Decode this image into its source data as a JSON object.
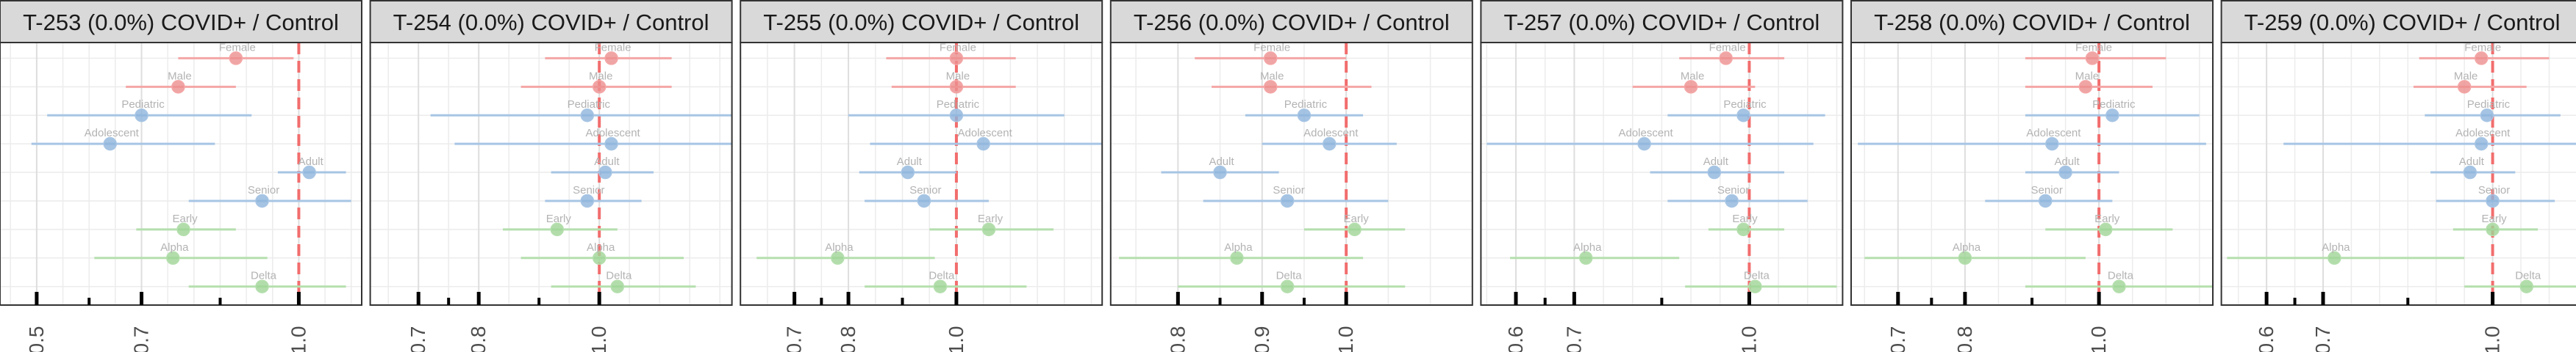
{
  "chart_data": [
    {
      "type": "forest",
      "title": "T-253 (0.0%) COVID+ / Control",
      "xticks": [
        0.5,
        0.7,
        1.0
      ],
      "xlim": [
        0.43,
        1.12
      ],
      "reference_line": 1.0,
      "points": [
        {
          "label": "Female",
          "estimate": 0.88,
          "low": 0.77,
          "high": 0.99
        },
        {
          "label": "Male",
          "estimate": 0.77,
          "low": 0.67,
          "high": 0.88
        },
        {
          "label": "Pediatric",
          "estimate": 0.7,
          "low": 0.52,
          "high": 0.91
        },
        {
          "label": "Adolescent",
          "estimate": 0.64,
          "low": 0.49,
          "high": 0.84
        },
        {
          "label": "Adult",
          "estimate": 1.02,
          "low": 0.96,
          "high": 1.09
        },
        {
          "label": "Senior",
          "estimate": 0.93,
          "low": 0.79,
          "high": 1.1
        },
        {
          "label": "Early",
          "estimate": 0.78,
          "low": 0.69,
          "high": 0.88
        },
        {
          "label": "Alpha",
          "estimate": 0.76,
          "low": 0.61,
          "high": 0.94
        },
        {
          "label": "Delta",
          "estimate": 0.93,
          "low": 0.79,
          "high": 1.09
        }
      ]
    },
    {
      "type": "forest",
      "title": "T-254 (0.0%) COVID+ / Control",
      "xticks": [
        0.7,
        0.8,
        1.0
      ],
      "xlim": [
        0.62,
        1.22
      ],
      "reference_line": 1.0,
      "points": [
        {
          "label": "Female",
          "estimate": 1.02,
          "low": 0.91,
          "high": 1.12
        },
        {
          "label": "Male",
          "estimate": 1.0,
          "low": 0.87,
          "high": 1.12
        },
        {
          "label": "Pediatric",
          "estimate": 0.98,
          "low": 0.72,
          "high": 1.22
        },
        {
          "label": "Adolescent",
          "estimate": 1.02,
          "low": 0.76,
          "high": 1.22
        },
        {
          "label": "Adult",
          "estimate": 1.01,
          "low": 0.92,
          "high": 1.09
        },
        {
          "label": "Senior",
          "estimate": 0.98,
          "low": 0.91,
          "high": 1.07
        },
        {
          "label": "Early",
          "estimate": 0.93,
          "low": 0.84,
          "high": 1.03
        },
        {
          "label": "Alpha",
          "estimate": 1.0,
          "low": 0.87,
          "high": 1.14
        },
        {
          "label": "Delta",
          "estimate": 1.03,
          "low": 0.92,
          "high": 1.16
        }
      ]
    },
    {
      "type": "forest",
      "title": "T-255 (0.0%) COVID+ / Control",
      "xticks": [
        0.7,
        0.8,
        1.0
      ],
      "xlim": [
        0.6,
        1.27
      ],
      "reference_line": 1.0,
      "points": [
        {
          "label": "Female",
          "estimate": 1.0,
          "low": 0.87,
          "high": 1.11
        },
        {
          "label": "Male",
          "estimate": 1.0,
          "low": 0.88,
          "high": 1.11
        },
        {
          "label": "Pediatric",
          "estimate": 1.0,
          "low": 0.8,
          "high": 1.2
        },
        {
          "label": "Adolescent",
          "estimate": 1.05,
          "low": 0.84,
          "high": 1.27
        },
        {
          "label": "Adult",
          "estimate": 0.91,
          "low": 0.82,
          "high": 1.0
        },
        {
          "label": "Senior",
          "estimate": 0.94,
          "low": 0.83,
          "high": 1.06
        },
        {
          "label": "Early",
          "estimate": 1.06,
          "low": 0.95,
          "high": 1.18
        },
        {
          "label": "Alpha",
          "estimate": 0.78,
          "low": 0.63,
          "high": 0.96
        },
        {
          "label": "Delta",
          "estimate": 0.97,
          "low": 0.83,
          "high": 1.13
        }
      ]
    },
    {
      "type": "forest",
      "title": "T-256 (0.0%) COVID+ / Control",
      "xticks": [
        0.8,
        0.9,
        1.0
      ],
      "xlim": [
        0.72,
        1.15
      ],
      "reference_line": 1.0,
      "points": [
        {
          "label": "Female",
          "estimate": 0.91,
          "low": 0.82,
          "high": 1.0
        },
        {
          "label": "Male",
          "estimate": 0.91,
          "low": 0.84,
          "high": 1.03
        },
        {
          "label": "Pediatric",
          "estimate": 0.95,
          "low": 0.88,
          "high": 1.02
        },
        {
          "label": "Adolescent",
          "estimate": 0.98,
          "low": 0.9,
          "high": 1.06
        },
        {
          "label": "Adult",
          "estimate": 0.85,
          "low": 0.78,
          "high": 0.92
        },
        {
          "label": "Senior",
          "estimate": 0.93,
          "low": 0.83,
          "high": 1.05
        },
        {
          "label": "Early",
          "estimate": 1.01,
          "low": 0.95,
          "high": 1.07
        },
        {
          "label": "Alpha",
          "estimate": 0.87,
          "low": 0.73,
          "high": 1.02
        },
        {
          "label": "Delta",
          "estimate": 0.93,
          "low": 0.8,
          "high": 1.07
        }
      ]
    },
    {
      "type": "forest",
      "title": "T-257 (0.0%) COVID+ / Control",
      "xticks": [
        0.6,
        0.7,
        1.0
      ],
      "xlim": [
        0.54,
        1.16
      ],
      "reference_line": 1.0,
      "points": [
        {
          "label": "Female",
          "estimate": 0.96,
          "low": 0.88,
          "high": 1.06
        },
        {
          "label": "Male",
          "estimate": 0.9,
          "low": 0.8,
          "high": 1.01
        },
        {
          "label": "Pediatric",
          "estimate": 0.99,
          "low": 0.86,
          "high": 1.13
        },
        {
          "label": "Adolescent",
          "estimate": 0.82,
          "low": 0.55,
          "high": 1.11
        },
        {
          "label": "Adult",
          "estimate": 0.94,
          "low": 0.83,
          "high": 1.06
        },
        {
          "label": "Senior",
          "estimate": 0.97,
          "low": 0.86,
          "high": 1.1
        },
        {
          "label": "Early",
          "estimate": 0.99,
          "low": 0.93,
          "high": 1.06
        },
        {
          "label": "Alpha",
          "estimate": 0.72,
          "low": 0.59,
          "high": 0.88
        },
        {
          "label": "Delta",
          "estimate": 1.01,
          "low": 0.89,
          "high": 1.15
        }
      ]
    },
    {
      "type": "forest",
      "title": "T-258 (0.0%) COVID+ / Control",
      "xticks": [
        0.7,
        0.8,
        1.0
      ],
      "xlim": [
        0.63,
        1.17
      ],
      "reference_line": 1.0,
      "points": [
        {
          "label": "Female",
          "estimate": 0.99,
          "low": 0.89,
          "high": 1.1
        },
        {
          "label": "Male",
          "estimate": 0.98,
          "low": 0.89,
          "high": 1.08
        },
        {
          "label": "Pediatric",
          "estimate": 1.02,
          "low": 0.89,
          "high": 1.15
        },
        {
          "label": "Adolescent",
          "estimate": 0.93,
          "low": 0.64,
          "high": 1.16
        },
        {
          "label": "Adult",
          "estimate": 0.95,
          "low": 0.89,
          "high": 1.03
        },
        {
          "label": "Senior",
          "estimate": 0.92,
          "low": 0.83,
          "high": 1.02
        },
        {
          "label": "Early",
          "estimate": 1.01,
          "low": 0.92,
          "high": 1.11
        },
        {
          "label": "Alpha",
          "estimate": 0.8,
          "low": 0.65,
          "high": 0.98
        },
        {
          "label": "Delta",
          "estimate": 1.03,
          "low": 0.89,
          "high": 1.17
        }
      ]
    },
    {
      "type": "forest",
      "title": "T-259 (0.0%) COVID+ / Control",
      "xticks": [
        0.6,
        0.7,
        1.0
      ],
      "xlim": [
        0.52,
        1.16
      ],
      "reference_line": 1.0,
      "points": [
        {
          "label": "Female",
          "estimate": 0.98,
          "low": 0.87,
          "high": 1.1
        },
        {
          "label": "Male",
          "estimate": 0.95,
          "low": 0.86,
          "high": 1.06
        },
        {
          "label": "Pediatric",
          "estimate": 0.99,
          "low": 0.88,
          "high": 1.12
        },
        {
          "label": "Adolescent",
          "estimate": 0.98,
          "low": 0.63,
          "high": 1.16
        },
        {
          "label": "Adult",
          "estimate": 0.96,
          "low": 0.89,
          "high": 1.04
        },
        {
          "label": "Senior",
          "estimate": 1.0,
          "low": 0.9,
          "high": 1.11
        },
        {
          "label": "Early",
          "estimate": 1.0,
          "low": 0.93,
          "high": 1.08
        },
        {
          "label": "Alpha",
          "estimate": 0.72,
          "low": 0.53,
          "high": 0.95
        },
        {
          "label": "Delta",
          "estimate": 1.06,
          "low": 0.95,
          "high": 1.16
        }
      ]
    }
  ],
  "colors": {
    "sex": "#f4a6a6",
    "age": "#a7c5e4",
    "variant": "#b5dfae",
    "reference_line": "#f26d6d",
    "strip_fill": "#d9d9d9",
    "label": "#b3b3b3"
  }
}
